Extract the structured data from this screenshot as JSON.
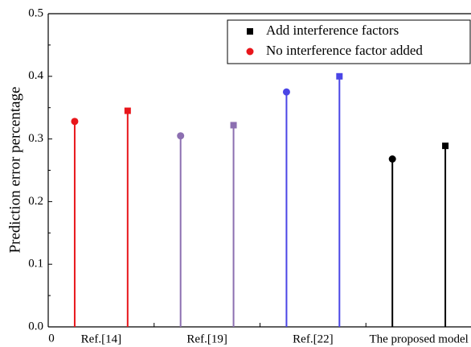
{
  "chart_data": {
    "type": "stem",
    "y_label": "Prediction error percentage",
    "x_start_label": "0",
    "categories": [
      "Ref.[14]",
      "Ref.[19]",
      "Ref.[22]",
      "The proposed model"
    ],
    "point_colors": [
      "#e8161b",
      "#8c6fb1",
      "#4a45e6",
      "#000000"
    ],
    "series": [
      {
        "name": "No interference factor added",
        "marker": "circle",
        "color": "#e8161b",
        "values": [
          0.328,
          0.305,
          0.375,
          0.268
        ]
      },
      {
        "name": "Add interference factors",
        "marker": "square",
        "color": "#000000",
        "values": [
          0.345,
          0.322,
          0.4,
          0.289
        ]
      }
    ],
    "ylim": [
      0,
      0.5
    ],
    "yticks": [
      {
        "value": 0,
        "label": "0.0"
      },
      {
        "value": 0.1,
        "label": "0.1"
      },
      {
        "value": 0.2,
        "label": "0.2"
      },
      {
        "value": 0.3,
        "label": "0.3"
      },
      {
        "value": 0.4,
        "label": "0.4"
      },
      {
        "value": 0.5,
        "label": "0.5"
      }
    ],
    "legend_order": [
      1,
      0
    ],
    "legend": "upper right"
  }
}
